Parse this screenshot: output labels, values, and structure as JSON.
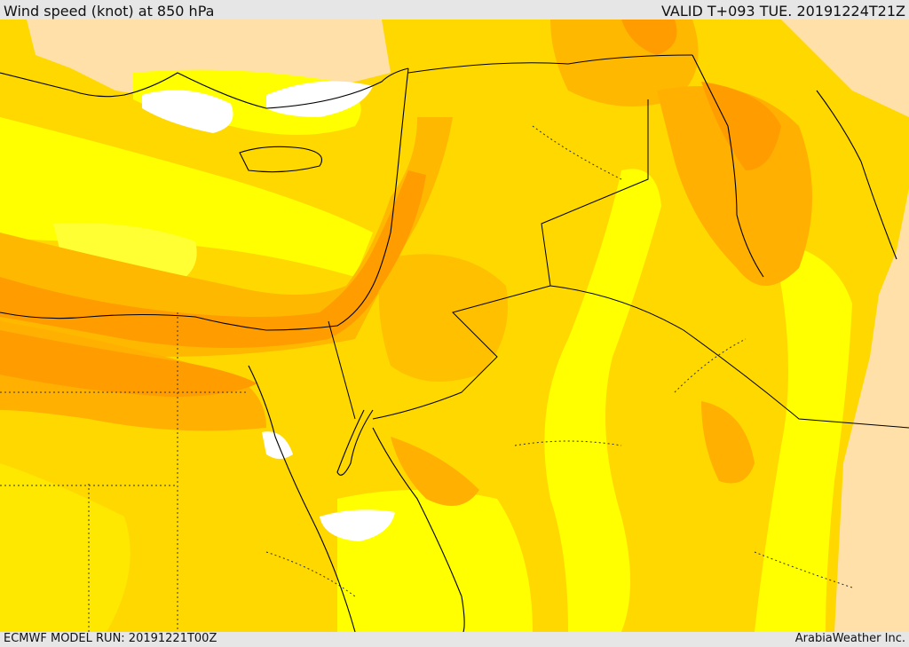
{
  "header": {
    "title": "Wind speed (knot) at 850 hPa",
    "valid": "VALID T+093 TUE. 20191224T21Z"
  },
  "footer": {
    "model_run": "ECMWF MODEL RUN: 20191221T00Z",
    "credit": "ArabiaWeather Inc."
  },
  "palette": {
    "calm_white": "#ffffff",
    "beige_land_low": "#ffe0a8",
    "yellow_light": "#ffff00",
    "yellow": "#ffe800",
    "gold": "#ffd000",
    "amber": "#ffb800",
    "orange": "#ff9c00",
    "coastline": "#000000",
    "border_dotted": "#333333"
  }
}
